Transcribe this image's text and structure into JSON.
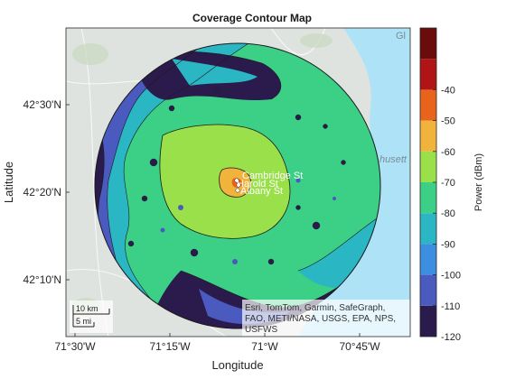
{
  "title": "Coverage Contour Map",
  "xlabel": "Longitude",
  "ylabel": "Latitude",
  "x_ticks": [
    "71°30'W",
    "71°15'W",
    "71°W",
    "70°45'W"
  ],
  "y_ticks": [
    "42°30'N",
    "42°20'N",
    "42°10'N"
  ],
  "colorbar": {
    "label": "Power (dBm)",
    "ticks": [
      "-40",
      "-50",
      "-60",
      "-70",
      "-80",
      "-90",
      "-100",
      "-110",
      "-120"
    ],
    "levels": [
      {
        "from": -120,
        "to": -110,
        "color": "#2b1a4c"
      },
      {
        "from": -110,
        "to": -100,
        "color": "#4a5abf"
      },
      {
        "from": -100,
        "to": -90,
        "color": "#3c8ee0"
      },
      {
        "from": -90,
        "to": -80,
        "color": "#2bb6c4"
      },
      {
        "from": -80,
        "to": -70,
        "color": "#3ccf86"
      },
      {
        "from": -70,
        "to": -60,
        "color": "#9ae04a"
      },
      {
        "from": -60,
        "to": -50,
        "color": "#f0b43c"
      },
      {
        "from": -50,
        "to": -40,
        "color": "#e8641c"
      },
      {
        "from": -40,
        "to": -30,
        "color": "#b01414"
      },
      {
        "from": -30,
        "to": -20,
        "color": "#6a0c0c"
      }
    ]
  },
  "site_labels": [
    "Cambridge St",
    "Harold St",
    "Albany St"
  ],
  "scale_bar": {
    "km": "10 km",
    "mi": "5 mi"
  },
  "attribution": [
    "Esri, TomTom, Garmin, SafeGraph,",
    "FAO, METI/NASA, USGS, EPA, NPS,",
    "USFWS"
  ],
  "basemap_edge_labels": [
    "Gl",
    "husett"
  ],
  "colors": {
    "basemap": "#dfe3df",
    "water": "#aee3f7",
    "contour_line": "#1a1a1a"
  }
}
